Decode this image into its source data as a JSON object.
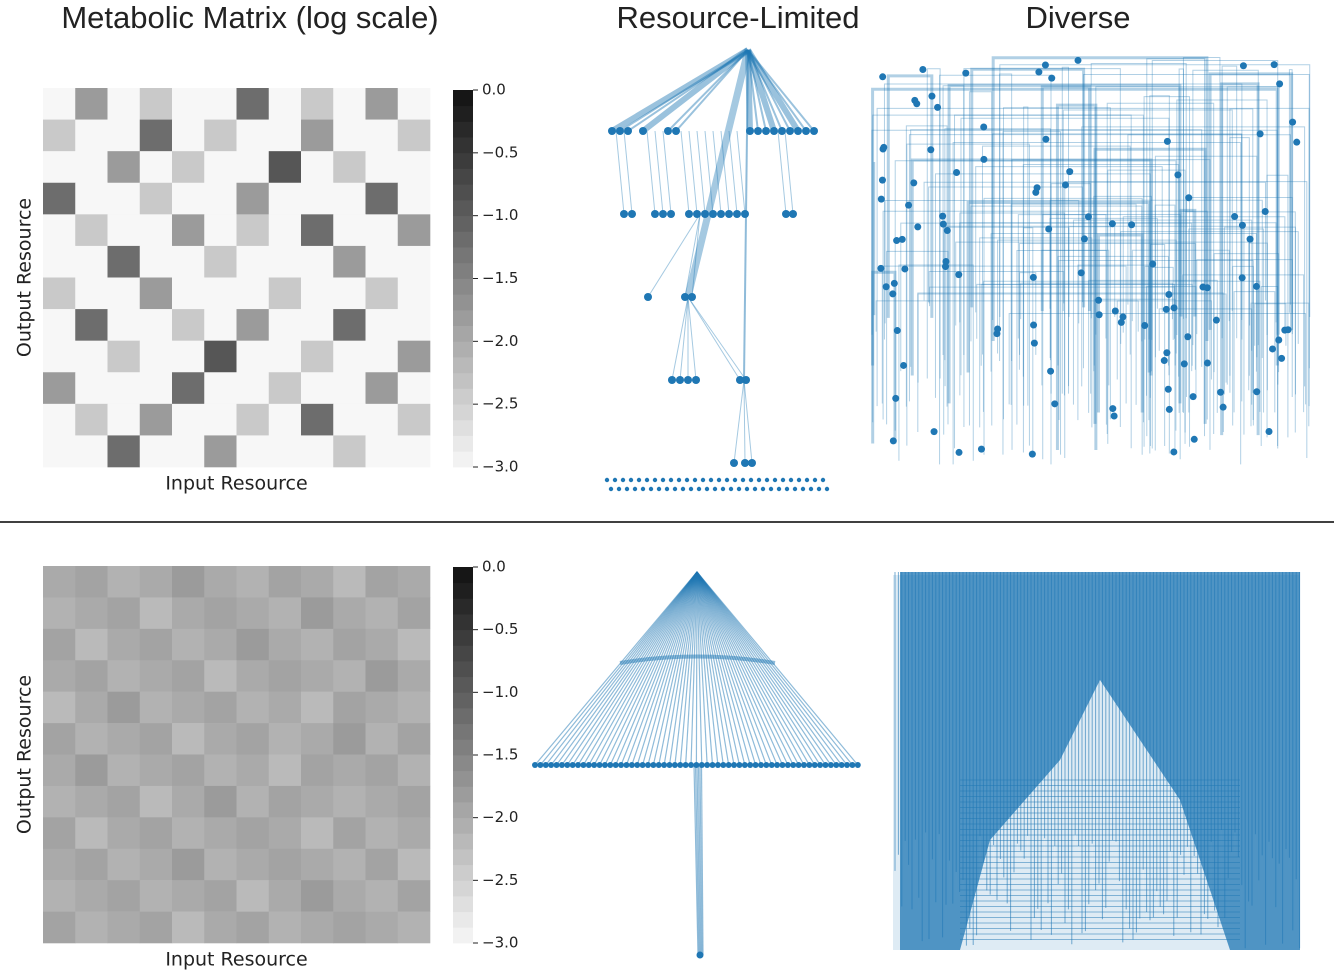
{
  "column_titles": [
    "Metabolic Matrix (log scale)",
    "Resource-Limited",
    "Diverse"
  ],
  "chart_data": [
    {
      "type": "heatmap",
      "xlabel": "Input Resource",
      "ylabel": "Output Resource",
      "clim": [
        -3.0,
        0.0
      ],
      "cticks": [
        {
          "value": 0.0,
          "label": "0.0"
        },
        {
          "value": -0.5,
          "label": "−0.5"
        },
        {
          "value": -1.0,
          "label": "−1.0"
        },
        {
          "value": -1.5,
          "label": "−1.5"
        },
        {
          "value": -2.0,
          "label": "−2.0"
        },
        {
          "value": -2.5,
          "label": "−2.5"
        },
        {
          "value": -3.0,
          "label": "−3.0"
        }
      ],
      "matrix": [
        [
          -3,
          -1.8,
          -3,
          -2.4,
          -3,
          -3,
          -1.2,
          -3,
          -2.4,
          -3,
          -1.8,
          -3
        ],
        [
          -2.4,
          -3,
          -3,
          -1.2,
          -3,
          -2.4,
          -3,
          -3,
          -1.8,
          -3,
          -3,
          -2.4
        ],
        [
          -3,
          -3,
          -1.8,
          -3,
          -2.4,
          -3,
          -3,
          -0.9,
          -3,
          -2.4,
          -3,
          -3
        ],
        [
          -1.2,
          -3,
          -3,
          -2.4,
          -3,
          -3,
          -1.8,
          -3,
          -3,
          -3,
          -1.2,
          -3
        ],
        [
          -3,
          -2.4,
          -3,
          -3,
          -1.8,
          -3,
          -2.4,
          -3,
          -1.2,
          -3,
          -3,
          -1.8
        ],
        [
          -3,
          -3,
          -1.2,
          -3,
          -3,
          -2.4,
          -3,
          -3,
          -3,
          -1.8,
          -3,
          -3
        ],
        [
          -2.4,
          -3,
          -3,
          -1.8,
          -3,
          -3,
          -3,
          -2.4,
          -3,
          -3,
          -2.4,
          -3
        ],
        [
          -3,
          -1.2,
          -3,
          -3,
          -2.4,
          -3,
          -1.8,
          -3,
          -3,
          -1.2,
          -3,
          -3
        ],
        [
          -3,
          -3,
          -2.4,
          -3,
          -3,
          -0.9,
          -3,
          -3,
          -2.4,
          -3,
          -3,
          -1.8
        ],
        [
          -1.8,
          -3,
          -3,
          -3,
          -1.2,
          -3,
          -3,
          -2.4,
          -3,
          -3,
          -1.8,
          -3
        ],
        [
          -3,
          -2.4,
          -3,
          -1.8,
          -3,
          -3,
          -2.4,
          -3,
          -1.2,
          -3,
          -3,
          -2.4
        ],
        [
          -3,
          -3,
          -1.2,
          -3,
          -3,
          -1.8,
          -3,
          -3,
          -3,
          -2.4,
          -3,
          -3
        ]
      ]
    },
    {
      "type": "heatmap",
      "xlabel": "Input Resource",
      "ylabel": "Output Resource",
      "clim": [
        -3.0,
        0.0
      ],
      "cticks": [
        {
          "value": 0.0,
          "label": "0.0"
        },
        {
          "value": -0.5,
          "label": "−0.5"
        },
        {
          "value": -1.0,
          "label": "−1.0"
        },
        {
          "value": -1.5,
          "label": "−1.5"
        },
        {
          "value": -2.0,
          "label": "−2.0"
        },
        {
          "value": -2.5,
          "label": "−2.5"
        },
        {
          "value": -3.0,
          "label": "−3.0"
        }
      ],
      "matrix": [
        [
          -2.0,
          -1.9,
          -2.1,
          -2.0,
          -1.8,
          -2.0,
          -2.1,
          -1.9,
          -2.0,
          -2.2,
          -1.9,
          -2.0
        ],
        [
          -2.1,
          -2.0,
          -1.9,
          -2.2,
          -2.0,
          -1.9,
          -2.0,
          -2.1,
          -1.8,
          -2.0,
          -2.1,
          -1.9
        ],
        [
          -1.9,
          -2.2,
          -2.0,
          -1.9,
          -2.1,
          -2.0,
          -1.8,
          -2.0,
          -2.1,
          -1.9,
          -2.0,
          -2.2
        ],
        [
          -2.0,
          -1.9,
          -2.1,
          -2.0,
          -1.9,
          -2.2,
          -2.0,
          -1.9,
          -2.0,
          -2.1,
          -1.8,
          -2.0
        ],
        [
          -2.2,
          -2.0,
          -1.8,
          -2.1,
          -2.0,
          -1.9,
          -2.1,
          -2.0,
          -2.2,
          -1.9,
          -2.0,
          -2.1
        ],
        [
          -1.9,
          -2.1,
          -2.0,
          -1.9,
          -2.2,
          -2.0,
          -1.9,
          -2.1,
          -2.0,
          -1.8,
          -2.1,
          -1.9
        ],
        [
          -2.0,
          -1.8,
          -2.1,
          -2.0,
          -1.9,
          -2.1,
          -2.0,
          -2.2,
          -1.9,
          -2.0,
          -1.9,
          -2.1
        ],
        [
          -2.1,
          -2.0,
          -1.9,
          -2.2,
          -2.0,
          -1.8,
          -2.1,
          -1.9,
          -2.0,
          -2.1,
          -2.0,
          -1.9
        ],
        [
          -1.9,
          -2.2,
          -2.0,
          -1.9,
          -2.1,
          -2.0,
          -1.9,
          -2.0,
          -2.2,
          -1.9,
          -2.1,
          -2.0
        ],
        [
          -2.0,
          -1.9,
          -2.1,
          -2.0,
          -1.8,
          -2.1,
          -2.0,
          -1.9,
          -2.0,
          -2.1,
          -1.9,
          -2.2
        ],
        [
          -2.1,
          -2.0,
          -1.9,
          -2.1,
          -2.0,
          -1.9,
          -2.2,
          -2.0,
          -1.8,
          -2.0,
          -2.1,
          -1.9
        ],
        [
          -1.9,
          -2.1,
          -2.0,
          -1.9,
          -2.2,
          -2.0,
          -1.9,
          -2.1,
          -2.0,
          -1.9,
          -2.0,
          -2.1
        ]
      ]
    }
  ]
}
